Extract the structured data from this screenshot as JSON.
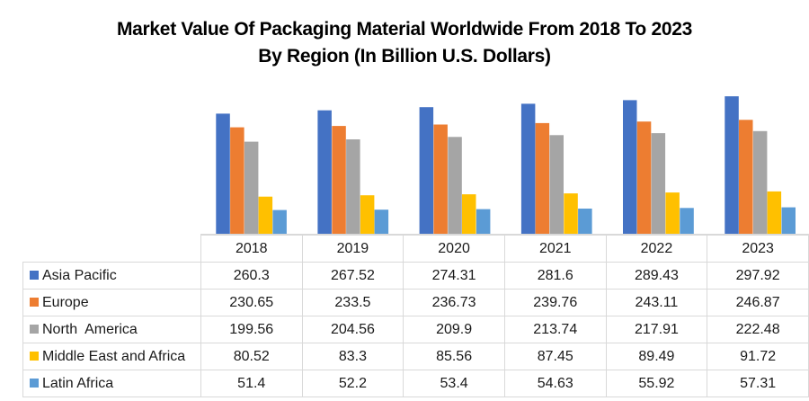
{
  "chart_data": {
    "type": "bar",
    "title": "Market Value Of Packaging Material Worldwide From 2018 To 2023",
    "subtitle": "By Region (In Billion U.S. Dollars)",
    "xlabel": "",
    "ylabel": "",
    "ylim": [
      0,
      300
    ],
    "grid": false,
    "legend": "data-table-left",
    "categories": [
      "2018",
      "2019",
      "2020",
      "2021",
      "2022",
      "2023"
    ],
    "series": [
      {
        "name": "Asia Pacific",
        "color": "#4472C4",
        "values": [
          260.3,
          267.52,
          274.31,
          281.6,
          289.43,
          297.92
        ],
        "labels": [
          "260.3",
          "267.52",
          "274.31",
          "281.6",
          "289.43",
          "297.92"
        ]
      },
      {
        "name": "Europe",
        "color": "#ED7D31",
        "values": [
          230.65,
          233.5,
          236.73,
          239.76,
          243.11,
          246.87
        ],
        "labels": [
          "230.65",
          "233.5",
          "236.73",
          "239.76",
          "243.11",
          "246.87"
        ]
      },
      {
        "name": "North  America",
        "color": "#A5A5A5",
        "values": [
          199.56,
          204.56,
          209.9,
          213.74,
          217.91,
          222.48
        ],
        "labels": [
          "199.56",
          "204.56",
          "209.9",
          "213.74",
          "217.91",
          "222.48"
        ]
      },
      {
        "name": "Middle East and Africa",
        "color": "#FFC000",
        "values": [
          80.52,
          83.3,
          85.56,
          87.45,
          89.49,
          91.72
        ],
        "labels": [
          "80.52",
          "83.3",
          "85.56",
          "87.45",
          "89.49",
          "91.72"
        ]
      },
      {
        "name": "Latin Africa",
        "color": "#5B9BD5",
        "values": [
          51.4,
          52.2,
          53.4,
          54.63,
          55.92,
          57.31
        ],
        "labels": [
          "51.4",
          "52.2",
          "53.4",
          "54.63",
          "55.92",
          "57.31"
        ]
      }
    ]
  }
}
